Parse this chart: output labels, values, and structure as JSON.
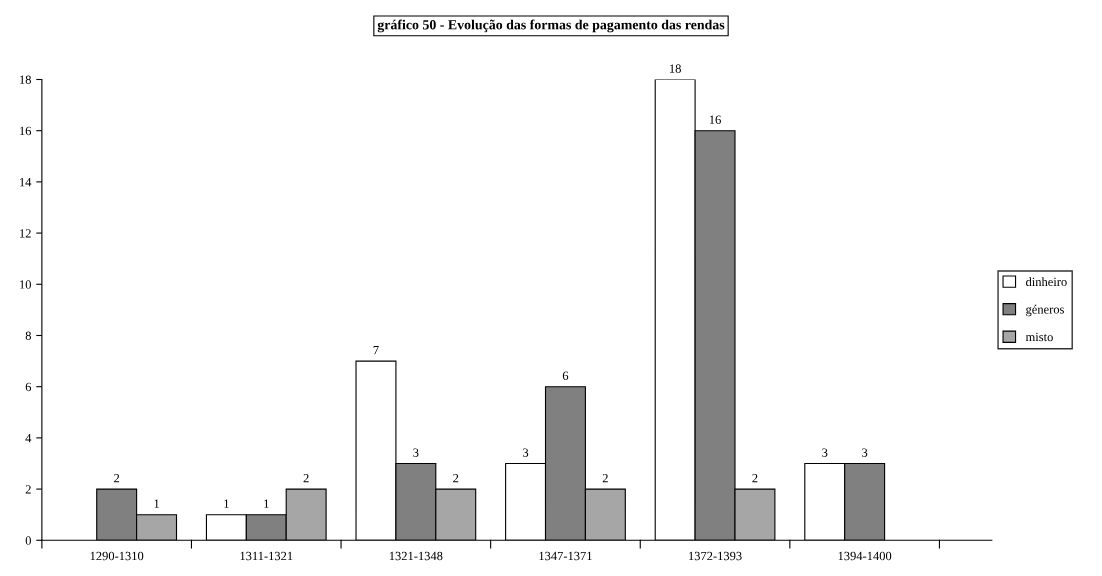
{
  "chart_data": {
    "type": "bar",
    "title": "gráfico 50 - Evolução das formas de pagamento das rendas",
    "categories": [
      "1290-1310",
      "1311-1321",
      "1321-1348",
      "1347-1371",
      "1372-1393",
      "1394-1400"
    ],
    "series": [
      {
        "name": "dinheiro",
        "color": "#ffffff",
        "values": [
          null,
          1,
          7,
          3,
          18,
          3
        ]
      },
      {
        "name": "géneros",
        "color": "#808080",
        "values": [
          2,
          1,
          3,
          6,
          16,
          3
        ]
      },
      {
        "name": "misto",
        "color": "#a6a6a6",
        "values": [
          1,
          2,
          2,
          2,
          2,
          null
        ]
      }
    ],
    "ylim": [
      0,
      18
    ],
    "yticks": [
      0,
      2,
      4,
      6,
      8,
      10,
      12,
      14,
      16,
      18
    ],
    "grid": false,
    "legend": "right",
    "data_labels": true
  }
}
